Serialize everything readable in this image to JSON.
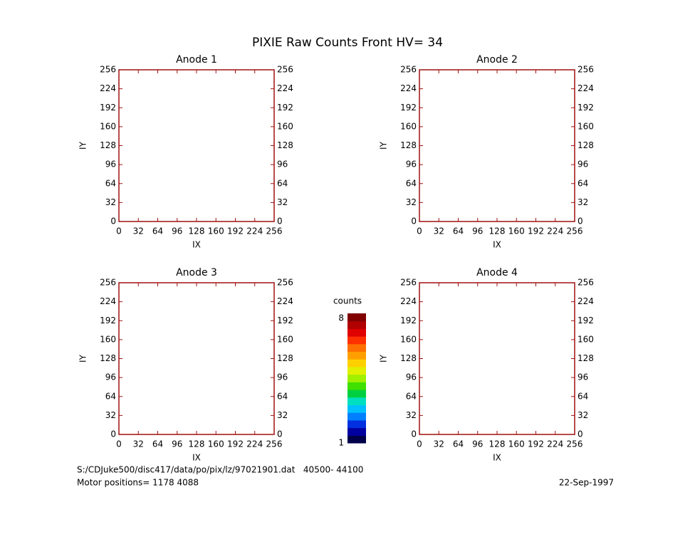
{
  "title": "PIXIE Raw Counts Front HV= 34",
  "chart_data": [
    {
      "type": "heatmap",
      "title": "Anode 1",
      "xlabel": "IX",
      "ylabel": "IY",
      "xlim": [
        0,
        256
      ],
      "ylim": [
        0,
        256
      ],
      "xticks": [
        0,
        32,
        64,
        96,
        128,
        160,
        192,
        224,
        256
      ],
      "yticks": [
        0,
        32,
        64,
        96,
        128,
        160,
        192,
        224,
        256
      ],
      "frame_color": "#a01010"
    },
    {
      "type": "heatmap",
      "title": "Anode 2",
      "xlabel": "IX",
      "ylabel": "IY",
      "xlim": [
        0,
        256
      ],
      "ylim": [
        0,
        256
      ],
      "xticks": [
        0,
        32,
        64,
        96,
        128,
        160,
        192,
        224,
        256
      ],
      "yticks": [
        0,
        32,
        64,
        96,
        128,
        160,
        192,
        224,
        256
      ],
      "frame_color": "#a01010"
    },
    {
      "type": "heatmap",
      "title": "Anode 3",
      "xlabel": "IX",
      "ylabel": "IY",
      "xlim": [
        0,
        256
      ],
      "ylim": [
        0,
        256
      ],
      "xticks": [
        0,
        32,
        64,
        96,
        128,
        160,
        192,
        224,
        256
      ],
      "yticks": [
        0,
        32,
        64,
        96,
        128,
        160,
        192,
        224,
        256
      ],
      "frame_color": "#a01010"
    },
    {
      "type": "heatmap",
      "title": "Anode 4",
      "xlabel": "IX",
      "ylabel": "IY",
      "xlim": [
        0,
        256
      ],
      "ylim": [
        0,
        256
      ],
      "xticks": [
        0,
        32,
        64,
        96,
        128,
        160,
        192,
        224,
        256
      ],
      "yticks": [
        0,
        32,
        64,
        96,
        128,
        160,
        192,
        224,
        256
      ],
      "frame_color": "#a01010"
    }
  ],
  "colorbar": {
    "label": "counts",
    "range": [
      1,
      8
    ],
    "colors": [
      "#00004a",
      "#0000a0",
      "#0030e0",
      "#0080ff",
      "#00c0ff",
      "#00e0c0",
      "#00d040",
      "#40e000",
      "#a0f000",
      "#e0f000",
      "#ffd000",
      "#ffa000",
      "#ff7000",
      "#ff3000",
      "#e00000",
      "#b00000",
      "#800000"
    ]
  },
  "footer": {
    "file": "S:/CDJuke500/disc417/data/po/pix/lz/97021901.dat   40500- 44100",
    "motor": "Motor positions= 1178 4088",
    "date": "22-Sep-1997"
  }
}
